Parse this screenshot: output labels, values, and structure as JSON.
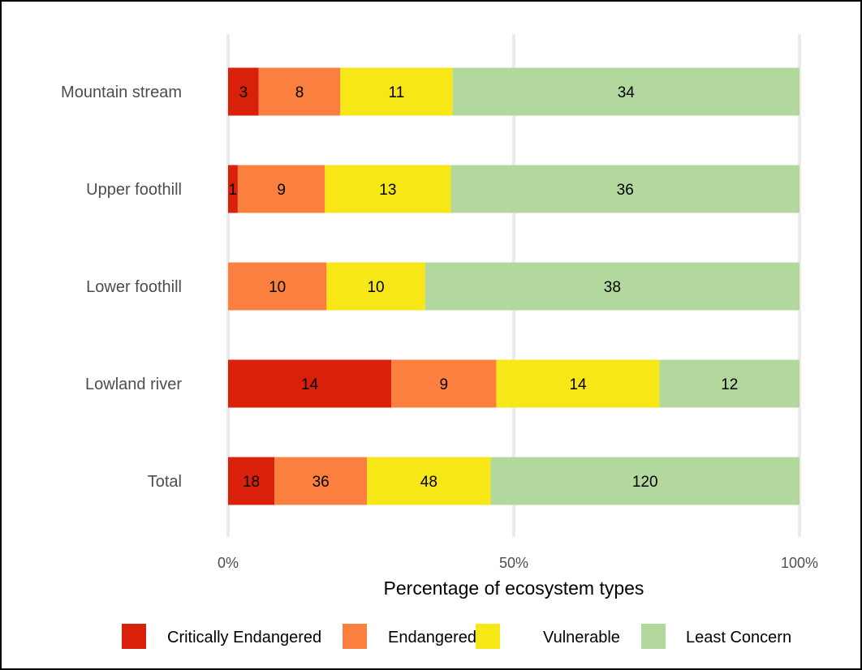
{
  "chart_data": {
    "type": "bar",
    "orientation": "horizontal",
    "stacked": "percent",
    "categories": [
      "Mountain stream",
      "Upper foothill",
      "Lower foothill",
      "Lowland river",
      "Total"
    ],
    "series": [
      {
        "name": "Critically Endangered",
        "values": [
          3,
          1,
          0,
          14,
          18
        ],
        "color": "#d9200b"
      },
      {
        "name": "Endangered",
        "values": [
          8,
          9,
          10,
          9,
          36
        ],
        "color": "#fb8040"
      },
      {
        "name": "Vulnerable",
        "values": [
          11,
          13,
          10,
          14,
          48
        ],
        "color": "#f8e716"
      },
      {
        "name": "Least Concern",
        "values": [
          34,
          36,
          38,
          12,
          120
        ],
        "color": "#b3d89e"
      }
    ],
    "xlabel": "Percentage of ecosystem types",
    "ylabel": "",
    "xlim": [
      0,
      100
    ],
    "xticks": [
      "0%",
      "50%",
      "100%"
    ],
    "grid": "vertical major gridlines",
    "legend": "bottom"
  }
}
